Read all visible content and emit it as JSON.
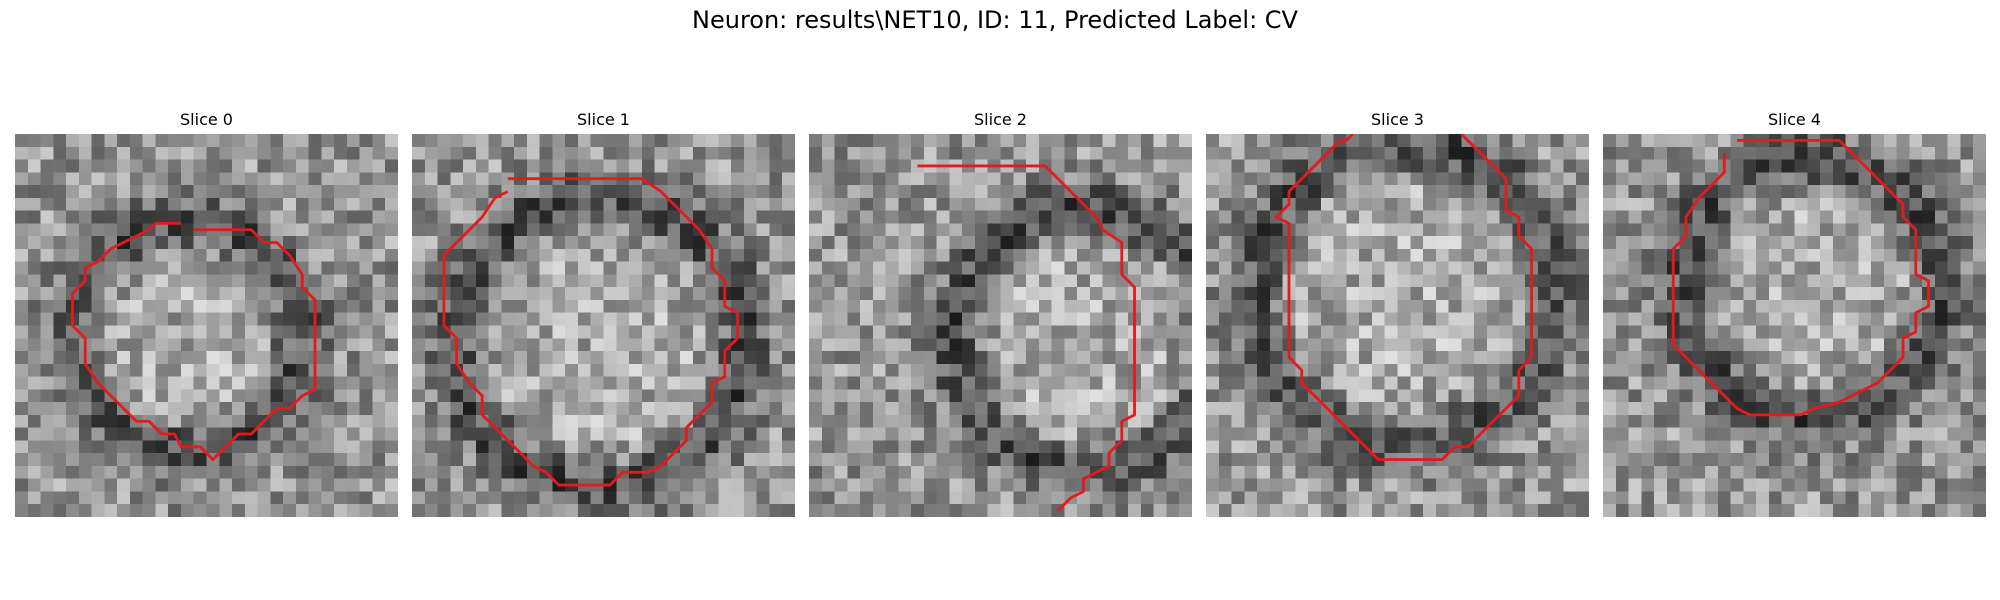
{
  "figure": {
    "title": "Neuron: results\\NET10, ID: 11, Predicted Label: CV"
  },
  "colors": {
    "contour": "#e41a1c",
    "background": "#ffffff"
  },
  "panels": [
    {
      "title": "Slice 0",
      "icon": "grayscale-microscopy-patch",
      "contour": [
        [
          14,
          7.5
        ],
        [
          18.5,
          7.5
        ],
        [
          19.5,
          8.5
        ],
        [
          20.5,
          8.5
        ],
        [
          21.5,
          9.5
        ],
        [
          22.5,
          11
        ],
        [
          22.5,
          12
        ],
        [
          23.5,
          13
        ],
        [
          23.5,
          20
        ],
        [
          22.5,
          20.5
        ],
        [
          21.5,
          21.5
        ],
        [
          20.5,
          21.5
        ],
        [
          18.5,
          23.5
        ],
        [
          17.5,
          23.5
        ],
        [
          16.5,
          24.5
        ],
        [
          15.5,
          25.5
        ],
        [
          14.5,
          24.5
        ],
        [
          13,
          24.5
        ],
        [
          12.5,
          23.5
        ],
        [
          11.5,
          23.5
        ],
        [
          10.5,
          22.5
        ],
        [
          9.5,
          22.5
        ],
        [
          8.5,
          21.5
        ],
        [
          7.5,
          20.5
        ],
        [
          6.5,
          19.5
        ],
        [
          5.5,
          18
        ],
        [
          5.5,
          16
        ],
        [
          4.5,
          15
        ],
        [
          4.5,
          12.5
        ],
        [
          5.5,
          11.5
        ],
        [
          5.5,
          10.5
        ],
        [
          6.5,
          10
        ],
        [
          7.5,
          9
        ],
        [
          8.5,
          8.5
        ],
        [
          9.5,
          8
        ],
        [
          10.5,
          7.5
        ],
        [
          11,
          7
        ],
        [
          13,
          7
        ]
      ]
    },
    {
      "title": "Slice 1",
      "icon": "grayscale-microscopy-patch",
      "contour": [
        [
          7.5,
          3.5
        ],
        [
          18,
          3.5
        ],
        [
          19.5,
          4.5
        ],
        [
          20.5,
          5.5
        ],
        [
          21.5,
          6.5
        ],
        [
          22.5,
          7.5
        ],
        [
          23.5,
          9
        ],
        [
          23.5,
          10.5
        ],
        [
          24.5,
          11.5
        ],
        [
          24.5,
          13.5
        ],
        [
          25.5,
          14
        ],
        [
          25.5,
          16
        ],
        [
          24.5,
          17
        ],
        [
          24.5,
          19
        ],
        [
          23.5,
          19.5
        ],
        [
          23.5,
          21
        ],
        [
          22.5,
          22
        ],
        [
          21.5,
          23
        ],
        [
          21.5,
          24
        ],
        [
          20.5,
          25
        ],
        [
          19.5,
          26
        ],
        [
          18.5,
          26.5
        ],
        [
          16.5,
          26.5
        ],
        [
          15.5,
          27.5
        ],
        [
          11.5,
          27.5
        ],
        [
          10.5,
          26.5
        ],
        [
          9.5,
          26
        ],
        [
          8.5,
          25
        ],
        [
          7.5,
          24
        ],
        [
          6.5,
          23
        ],
        [
          5.5,
          22
        ],
        [
          5.5,
          20.5
        ],
        [
          4.5,
          19.5
        ],
        [
          3.5,
          18
        ],
        [
          3.5,
          16
        ],
        [
          2.5,
          15
        ],
        [
          2.5,
          9.5
        ],
        [
          3.5,
          8.5
        ],
        [
          4.5,
          7.5
        ],
        [
          5.5,
          6.5
        ],
        [
          6.5,
          5
        ],
        [
          7.5,
          4.5
        ]
      ]
    },
    {
      "title": "Slice 2",
      "icon": "grayscale-microscopy-patch",
      "contour": [
        [
          8.5,
          2.5
        ],
        [
          18.5,
          2.5
        ],
        [
          19.5,
          3.5
        ],
        [
          20.5,
          4.5
        ],
        [
          21.5,
          5.5
        ],
        [
          22.5,
          6.5
        ],
        [
          23,
          7.5
        ],
        [
          24.5,
          8.5
        ],
        [
          24.5,
          11
        ],
        [
          25.5,
          12
        ],
        [
          25.5,
          22
        ],
        [
          24.5,
          22.5
        ],
        [
          24.5,
          24
        ],
        [
          23.5,
          25
        ],
        [
          23.5,
          26
        ],
        [
          22.5,
          26.5
        ],
        [
          21.5,
          27
        ],
        [
          21.5,
          28
        ],
        [
          20.5,
          28.5
        ],
        [
          19.5,
          29.5
        ]
      ]
    },
    {
      "title": "Slice 3",
      "icon": "grayscale-microscopy-patch",
      "contour": [
        [
          11.5,
          0
        ],
        [
          11,
          0.5
        ],
        [
          10.5,
          0.5
        ],
        [
          9.5,
          1.5
        ],
        [
          8.5,
          2.5
        ],
        [
          7.5,
          3.5
        ],
        [
          6.5,
          4.5
        ],
        [
          6.5,
          5.5
        ],
        [
          5.5,
          6.5
        ],
        [
          6.5,
          7
        ],
        [
          6.5,
          17.5
        ],
        [
          7.5,
          18.5
        ],
        [
          7.5,
          19.5
        ],
        [
          8.5,
          20.5
        ],
        [
          9.5,
          21.5
        ],
        [
          10.5,
          22.5
        ],
        [
          11.5,
          23.5
        ],
        [
          12.5,
          24.5
        ],
        [
          13.5,
          25.5
        ],
        [
          18.5,
          25.5
        ],
        [
          19.5,
          24.5
        ],
        [
          20.5,
          24.5
        ],
        [
          21.5,
          23.5
        ],
        [
          22.5,
          22.5
        ],
        [
          23.5,
          21.5
        ],
        [
          24.5,
          20.5
        ],
        [
          24.5,
          18.5
        ],
        [
          25.5,
          17.5
        ],
        [
          25.5,
          9
        ],
        [
          24.5,
          8
        ],
        [
          24.5,
          6.5
        ],
        [
          23.5,
          6
        ],
        [
          23.5,
          3.5
        ],
        [
          22.5,
          2.5
        ],
        [
          21.5,
          1.5
        ],
        [
          20.5,
          0.5
        ],
        [
          20,
          0
        ]
      ]
    },
    {
      "title": "Slice 4",
      "icon": "grayscale-microscopy-patch",
      "contour": [
        [
          10.5,
          0.5
        ],
        [
          18.5,
          0.5
        ],
        [
          19.5,
          1.5
        ],
        [
          20.5,
          2.5
        ],
        [
          21.5,
          3.5
        ],
        [
          22.5,
          4.5
        ],
        [
          23.5,
          5.5
        ],
        [
          23.5,
          6.5
        ],
        [
          24.5,
          7.5
        ],
        [
          24.5,
          11
        ],
        [
          25.5,
          11.5
        ],
        [
          25.5,
          13.5
        ],
        [
          24.5,
          14
        ],
        [
          24.5,
          15.5
        ],
        [
          23.5,
          16
        ],
        [
          23.5,
          17.5
        ],
        [
          22.5,
          18.5
        ],
        [
          21.5,
          19.5
        ],
        [
          20.5,
          20
        ],
        [
          19.5,
          20.5
        ],
        [
          18.5,
          21
        ],
        [
          16.5,
          21.5
        ],
        [
          15.5,
          22
        ],
        [
          11.5,
          22
        ],
        [
          10.5,
          21.5
        ],
        [
          9.5,
          20.5
        ],
        [
          8.5,
          19.5
        ],
        [
          7.5,
          18.5
        ],
        [
          6.5,
          17.5
        ],
        [
          5.5,
          16.5
        ],
        [
          5.5,
          9
        ],
        [
          6.5,
          8
        ],
        [
          6.5,
          6.5
        ],
        [
          7.5,
          5
        ],
        [
          8.5,
          4
        ],
        [
          9.5,
          3
        ],
        [
          9.5,
          1.5
        ]
      ]
    }
  ]
}
